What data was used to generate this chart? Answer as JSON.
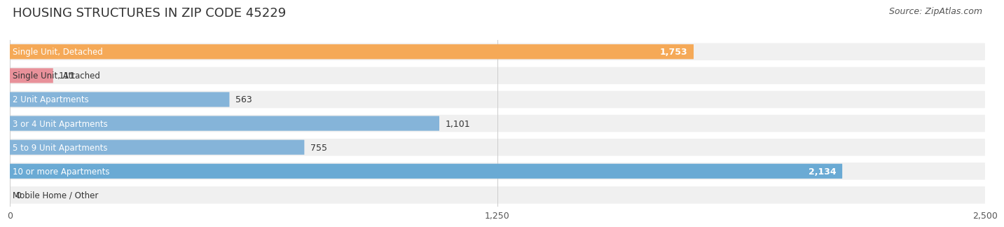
{
  "title": "HOUSING STRUCTURES IN ZIP CODE 45229",
  "source": "Source: ZipAtlas.com",
  "categories": [
    "Single Unit, Detached",
    "Single Unit, Attached",
    "2 Unit Apartments",
    "3 or 4 Unit Apartments",
    "5 to 9 Unit Apartments",
    "10 or more Apartments",
    "Mobile Home / Other"
  ],
  "values": [
    1753,
    111,
    563,
    1101,
    755,
    2134,
    0
  ],
  "bar_colors": [
    "#F5A957",
    "#E8919A",
    "#85B4D9",
    "#85B4D9",
    "#85B4D9",
    "#6AAAD4",
    "#C4A8D0"
  ],
  "xlim": [
    0,
    2500
  ],
  "xticks": [
    0,
    1250,
    2500
  ],
  "xtick_labels": [
    "0",
    "1,250",
    "2,500"
  ],
  "value_label_inside_threshold": 1400,
  "title_fontsize": 13,
  "source_fontsize": 9,
  "bar_label_fontsize": 9,
  "cat_label_fontsize": 8.5,
  "background_color": "#FFFFFF"
}
